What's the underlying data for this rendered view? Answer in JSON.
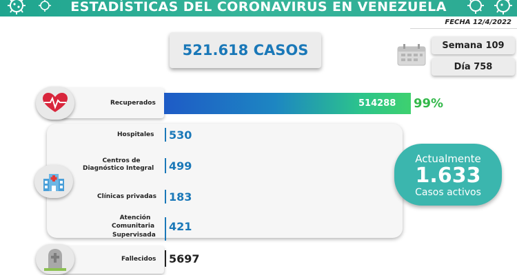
{
  "header": {
    "title": "ESTADÍSTICAS DEL CORONAVIRUS EN VENEZUELA",
    "fecha": "FECHA 12/4/2022"
  },
  "total": {
    "label": "521.618 CASOS"
  },
  "calendar": {
    "semana": "Semana 109",
    "dia": "Día 758"
  },
  "recuperados": {
    "label": "Recuperados",
    "value": "514288",
    "pct": "99%",
    "fraction": 0.99
  },
  "hospitalizacion": {
    "items": [
      {
        "label": "Hospitales",
        "value": "530"
      },
      {
        "label_line1": "Centros de",
        "label_line2": "Diagnóstico Integral",
        "value": "499"
      },
      {
        "label": "Clínicas privadas",
        "value": "183"
      },
      {
        "label_line1": "Atención",
        "label_line2": "Comunitaria",
        "label_line3": "Supervisada",
        "value": "421"
      }
    ]
  },
  "activos": {
    "line1": "Actualmente",
    "value": "1.633",
    "line2": "Casos activos"
  },
  "fallecidos": {
    "label": "Fallecidos",
    "value": "5697"
  },
  "icons": [
    "virus-icon",
    "calendar-icon",
    "heart-pulse-icon",
    "hospital-icon",
    "gravestone-icon"
  ],
  "colors": {
    "header": "#2aa992",
    "accent_blue": "#1a78b8",
    "active_teal": "#3bb6ae",
    "green_pct": "#33b84a"
  }
}
